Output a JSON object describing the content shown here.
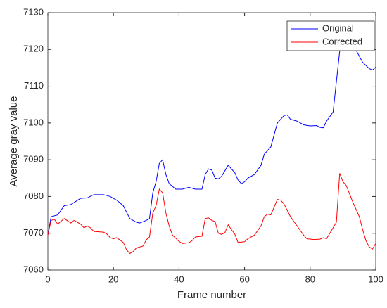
{
  "chart_data": {
    "type": "line",
    "xlabel": "Frame number",
    "ylabel": "Average gray value",
    "xlim": [
      0,
      100
    ],
    "xticks": [
      0,
      20,
      40,
      60,
      80,
      100
    ],
    "ylim": [
      7060,
      7130
    ],
    "yticks": [
      7060,
      7070,
      7080,
      7090,
      7100,
      7110,
      7120,
      7130
    ],
    "legend": "northeast",
    "series": [
      {
        "name": "Original",
        "color": "#0000ff",
        "x": [
          0,
          1,
          3,
          5,
          7,
          10,
          12,
          14,
          17,
          19,
          21,
          23,
          25,
          27,
          28,
          30,
          31,
          32,
          33,
          34,
          35,
          36,
          37,
          39,
          41,
          43,
          45,
          47,
          48,
          49,
          50,
          51,
          52,
          53,
          55,
          57,
          58,
          59,
          60,
          61,
          63,
          65,
          66,
          68,
          70,
          72,
          73,
          74,
          76,
          78,
          80,
          82,
          83,
          84,
          85,
          87,
          89,
          90,
          91,
          92,
          94,
          96,
          98,
          99,
          100
        ],
        "values": [
          7069.5,
          7074.5,
          7075,
          7077.5,
          7077.8,
          7079.5,
          7079.6,
          7080.5,
          7080.5,
          7080,
          7079,
          7077.5,
          7074,
          7073,
          7072.8,
          7073.5,
          7074,
          7081,
          7084,
          7089,
          7090,
          7086,
          7083.5,
          7082,
          7082,
          7082.5,
          7082,
          7082,
          7086,
          7087.5,
          7087.2,
          7085,
          7084.8,
          7085.5,
          7088.5,
          7086.5,
          7084.5,
          7083.5,
          7084,
          7085,
          7086,
          7088.5,
          7091.5,
          7093.5,
          7100,
          7102,
          7102.2,
          7101,
          7100.5,
          7099.5,
          7099.2,
          7099.3,
          7098.8,
          7098.7,
          7100.5,
          7103,
          7119.5,
          7120.5,
          7121,
          7120,
          7119.8,
          7116.5,
          7114.8,
          7114.4,
          7115.2
        ]
      },
      {
        "name": "Corrected",
        "color": "#ff0000",
        "x": [
          0,
          1,
          2,
          3,
          5,
          7,
          8,
          10,
          11,
          12,
          13,
          14,
          17,
          18,
          19,
          20,
          21,
          23,
          24,
          25,
          26,
          27,
          29,
          30,
          31,
          32,
          33,
          34,
          35,
          36,
          37,
          38,
          40,
          41,
          43,
          44,
          45,
          47,
          48,
          49,
          50,
          51,
          52,
          53,
          54,
          55,
          56,
          57,
          58,
          60,
          61,
          63,
          65,
          66,
          67,
          68,
          70,
          71,
          72,
          74,
          76,
          78,
          79,
          81,
          83,
          84,
          85,
          87,
          88,
          89,
          90,
          91,
          93,
          95,
          96,
          97,
          98,
          99,
          100
        ],
        "values": [
          7069.5,
          7073.5,
          7073.8,
          7072.5,
          7074,
          7072.8,
          7073.5,
          7072.5,
          7071.5,
          7072,
          7071.5,
          7070.5,
          7070.3,
          7069.8,
          7068.8,
          7068.5,
          7068.8,
          7067.5,
          7065.5,
          7064.5,
          7065,
          7066,
          7066.5,
          7068.2,
          7069,
          7075.5,
          7077.5,
          7082,
          7081,
          7075.5,
          7072,
          7069.5,
          7067.8,
          7067.2,
          7067.4,
          7068,
          7069,
          7069.2,
          7074,
          7074.2,
          7073.5,
          7073.2,
          7070,
          7069.7,
          7070.2,
          7072.3,
          7071,
          7069.8,
          7067.5,
          7067.7,
          7068.5,
          7069.5,
          7072,
          7074.5,
          7075.2,
          7075,
          7079.2,
          7079,
          7078,
          7074.5,
          7072,
          7069.5,
          7068.5,
          7068.3,
          7068.4,
          7068.8,
          7068.5,
          7071.5,
          7073,
          7086.3,
          7084,
          7083,
          7078.5,
          7074.5,
          7071,
          7068,
          7066.3,
          7065.7,
          7067.2
        ]
      }
    ]
  }
}
